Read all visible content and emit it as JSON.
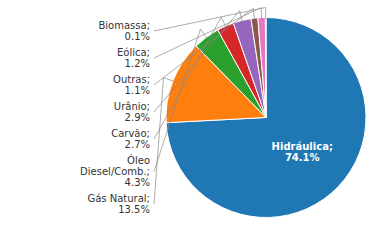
{
  "chart_data": {
    "type": "pie",
    "categories": [
      "Hidráulica;",
      "Gás Natural;",
      "Óleo\nDiesel/Comb.;",
      "Carvão;",
      "Urânio;",
      "Outras;",
      "Eólica;",
      "Biomassa;"
    ],
    "values": [
      74.1,
      13.5,
      4.3,
      2.7,
      2.9,
      1.1,
      1.2,
      0.1
    ],
    "value_labels": [
      "74.1%",
      "13.5%",
      "4.3%",
      "2.7%",
      "2.9%",
      "1.1%",
      "1.2%",
      "0.1%"
    ],
    "data_labels": true
  }
}
